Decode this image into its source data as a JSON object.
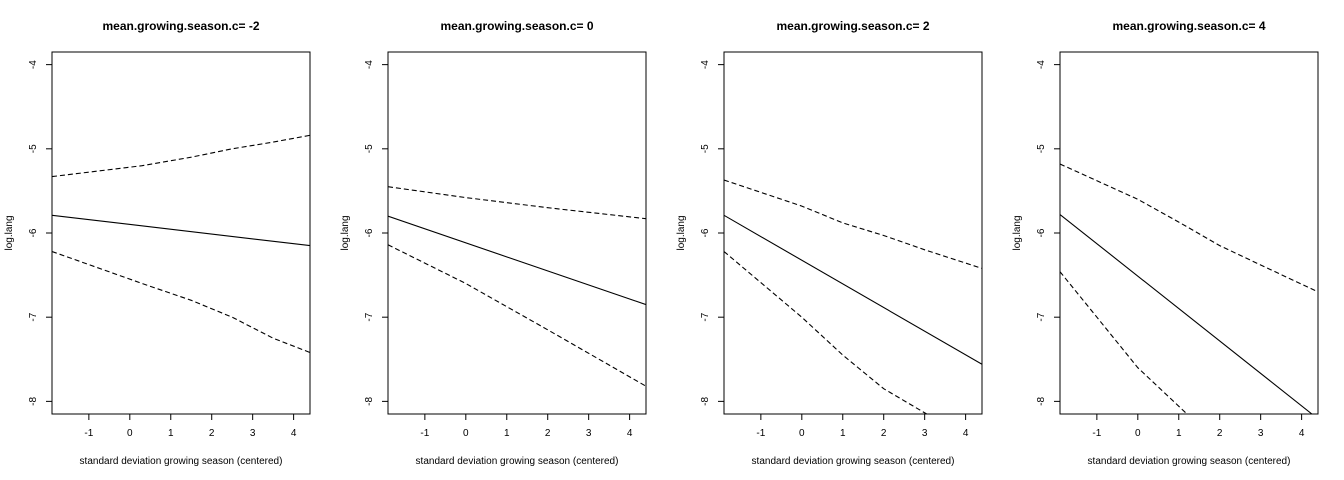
{
  "chart_data": [
    {
      "type": "line",
      "title": "mean.growing.season.c= -2",
      "xlabel": "standard deviation growing season (centered)",
      "ylabel": "log.lang",
      "xlim": [
        -1.9,
        4.4
      ],
      "ylim": [
        -8.15,
        -3.85
      ],
      "xticks": [
        "-1",
        "0",
        "1",
        "2",
        "3",
        "4"
      ],
      "yticks": [
        "-4",
        "-5",
        "-6",
        "-7",
        "-8"
      ],
      "series": [
        {
          "style": "solid",
          "points": [
            [
              -1.9,
              -5.79
            ],
            [
              4.4,
              -6.15
            ]
          ]
        },
        {
          "style": "dashed",
          "points": [
            [
              -1.9,
              -5.33
            ],
            [
              0.3,
              -5.2
            ],
            [
              1.5,
              -5.1
            ],
            [
              2.5,
              -5.0
            ],
            [
              3.5,
              -4.92
            ],
            [
              4.4,
              -4.84
            ]
          ]
        },
        {
          "style": "dashed",
          "points": [
            [
              -1.9,
              -6.22
            ],
            [
              0.3,
              -6.6
            ],
            [
              1.5,
              -6.8
            ],
            [
              2.5,
              -7.0
            ],
            [
              3.5,
              -7.25
            ],
            [
              4.4,
              -7.42
            ]
          ]
        }
      ]
    },
    {
      "type": "line",
      "title": "mean.growing.season.c= 0",
      "xlabel": "standard deviation growing season (centered)",
      "ylabel": "log.lang",
      "xlim": [
        -1.9,
        4.4
      ],
      "ylim": [
        -8.15,
        -3.85
      ],
      "xticks": [
        "-1",
        "0",
        "1",
        "2",
        "3",
        "4"
      ],
      "yticks": [
        "-4",
        "-5",
        "-6",
        "-7",
        "-8"
      ],
      "series": [
        {
          "style": "solid",
          "points": [
            [
              -1.9,
              -5.8
            ],
            [
              4.4,
              -6.85
            ]
          ]
        },
        {
          "style": "dashed",
          "points": [
            [
              -1.9,
              -5.45
            ],
            [
              0.0,
              -5.58
            ],
            [
              2.0,
              -5.7
            ],
            [
              4.4,
              -5.83
            ]
          ]
        },
        {
          "style": "dashed",
          "points": [
            [
              -1.9,
              -6.14
            ],
            [
              0.0,
              -6.6
            ],
            [
              2.0,
              -7.15
            ],
            [
              4.4,
              -7.82
            ]
          ]
        }
      ]
    },
    {
      "type": "line",
      "title": "mean.growing.season.c= 2",
      "xlabel": "standard deviation growing season (centered)",
      "ylabel": "log.lang",
      "xlim": [
        -1.9,
        4.4
      ],
      "ylim": [
        -8.15,
        -3.85
      ],
      "xticks": [
        "-1",
        "0",
        "1",
        "2",
        "3",
        "4"
      ],
      "yticks": [
        "-4",
        "-5",
        "-6",
        "-7",
        "-8"
      ],
      "series": [
        {
          "style": "solid",
          "points": [
            [
              -1.9,
              -5.79
            ],
            [
              4.4,
              -7.56
            ]
          ]
        },
        {
          "style": "dashed",
          "points": [
            [
              -1.9,
              -5.37
            ],
            [
              0.0,
              -5.68
            ],
            [
              1.0,
              -5.88
            ],
            [
              2.0,
              -6.03
            ],
            [
              3.0,
              -6.2
            ],
            [
              4.4,
              -6.42
            ]
          ]
        },
        {
          "style": "dashed",
          "points": [
            [
              -1.9,
              -6.22
            ],
            [
              0.0,
              -7.0
            ],
            [
              1.0,
              -7.45
            ],
            [
              2.0,
              -7.85
            ],
            [
              3.05,
              -8.15
            ]
          ]
        }
      ]
    },
    {
      "type": "line",
      "title": "mean.growing.season.c= 4",
      "xlabel": "standard deviation growing season (centered)",
      "ylabel": "log.lang",
      "xlim": [
        -1.9,
        4.4
      ],
      "ylim": [
        -8.15,
        -3.85
      ],
      "xticks": [
        "-1",
        "0",
        "1",
        "2",
        "3",
        "4"
      ],
      "yticks": [
        "-4",
        "-5",
        "-6",
        "-7",
        "-8"
      ],
      "series": [
        {
          "style": "solid",
          "points": [
            [
              -1.9,
              -5.78
            ],
            [
              4.25,
              -8.15
            ]
          ]
        },
        {
          "style": "dashed",
          "points": [
            [
              -1.9,
              -5.18
            ],
            [
              0.0,
              -5.6
            ],
            [
              1.0,
              -5.87
            ],
            [
              2.0,
              -6.15
            ],
            [
              3.0,
              -6.38
            ],
            [
              4.4,
              -6.7
            ]
          ]
        },
        {
          "style": "dashed",
          "points": [
            [
              -1.9,
              -6.46
            ],
            [
              -1.0,
              -7.0
            ],
            [
              0.0,
              -7.6
            ],
            [
              1.2,
              -8.15
            ]
          ]
        }
      ]
    }
  ]
}
